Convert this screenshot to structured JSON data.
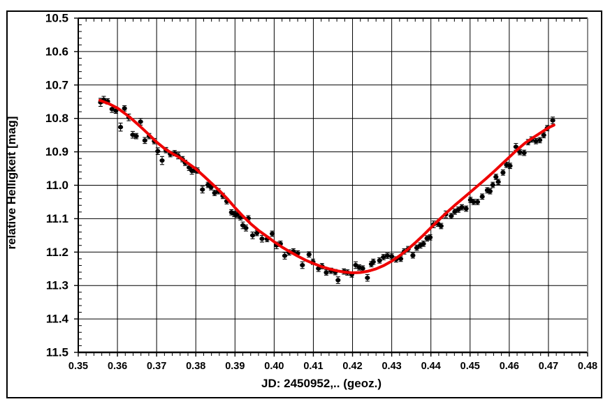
{
  "colors": {
    "background": "#ffffff",
    "frame": "#000000",
    "frame_right_axis": "#8c8c8c",
    "grid": "#000000",
    "data_points": "#000000",
    "fit_line": "#ee0000"
  },
  "chart_data": {
    "type": "scatter",
    "title": "",
    "xlabel": "JD: 2450952,..   (geoz.)",
    "ylabel": "relative Helligkeit [mag]",
    "xlim": [
      0.35,
      0.48
    ],
    "ylim": [
      10.5,
      11.5
    ],
    "y_axis_inverted_magnitude_scale": true,
    "grid": true,
    "x_major_step": 0.01,
    "x_minor_step": 0.002,
    "y_major_step": 0.1,
    "y_minor_step": 0.02,
    "x_tick_labels": [
      "0.35",
      "0.36",
      "0.37",
      "0.38",
      "0.39",
      "0.40",
      "0.41",
      "0.42",
      "0.43",
      "0.44",
      "0.45",
      "0.46",
      "0.47",
      "0.48"
    ],
    "y_tick_labels": [
      "10.5",
      "10.6",
      "10.7",
      "10.8",
      "10.9",
      "11.0",
      "11.1",
      "11.2",
      "11.3",
      "11.4",
      "11.5"
    ],
    "series": [
      {
        "name": "photometric measurements with error bars",
        "style": "scatter-errorbar",
        "color": "#000000",
        "points_format": [
          "jd_fraction",
          "magnitude",
          "error_mag"
        ],
        "points": [
          [
            0.3557,
            10.752,
            0.012
          ],
          [
            0.3565,
            10.744,
            0.01
          ],
          [
            0.3575,
            10.749,
            0.008
          ],
          [
            0.3586,
            10.772,
            0.01
          ],
          [
            0.3596,
            10.777,
            0.008
          ],
          [
            0.3608,
            10.826,
            0.012
          ],
          [
            0.3618,
            10.77,
            0.008
          ],
          [
            0.3629,
            10.797,
            0.01
          ],
          [
            0.3639,
            10.849,
            0.01
          ],
          [
            0.3648,
            10.853,
            0.008
          ],
          [
            0.3659,
            10.81,
            0.01
          ],
          [
            0.367,
            10.866,
            0.009
          ],
          [
            0.3681,
            10.853,
            0.008
          ],
          [
            0.3694,
            10.868,
            0.008
          ],
          [
            0.3703,
            10.898,
            0.01
          ],
          [
            0.3714,
            10.926,
            0.012
          ],
          [
            0.3724,
            10.895,
            0.008
          ],
          [
            0.3735,
            10.907,
            0.008
          ],
          [
            0.3746,
            10.904,
            0.008
          ],
          [
            0.3755,
            10.912,
            0.009
          ],
          [
            0.3766,
            10.922,
            0.008
          ],
          [
            0.3773,
            10.933,
            0.008
          ],
          [
            0.3783,
            10.947,
            0.009
          ],
          [
            0.379,
            10.957,
            0.01
          ],
          [
            0.3797,
            10.954,
            0.008
          ],
          [
            0.3804,
            10.956,
            0.008
          ],
          [
            0.3817,
            11.013,
            0.01
          ],
          [
            0.3831,
            10.999,
            0.008
          ],
          [
            0.3839,
            11.006,
            0.008
          ],
          [
            0.3848,
            11.023,
            0.008
          ],
          [
            0.3858,
            11.018,
            0.008
          ],
          [
            0.3869,
            11.032,
            0.008
          ],
          [
            0.3879,
            11.048,
            0.008
          ],
          [
            0.3891,
            11.081,
            0.008
          ],
          [
            0.3898,
            11.086,
            0.008
          ],
          [
            0.3905,
            11.088,
            0.008
          ],
          [
            0.3914,
            11.096,
            0.008
          ],
          [
            0.392,
            11.12,
            0.01
          ],
          [
            0.3928,
            11.128,
            0.009
          ],
          [
            0.3934,
            11.099,
            0.008
          ],
          [
            0.3945,
            11.15,
            0.01
          ],
          [
            0.3956,
            11.143,
            0.008
          ],
          [
            0.3969,
            11.16,
            0.01
          ],
          [
            0.3982,
            11.161,
            0.008
          ],
          [
            0.3995,
            11.145,
            0.008
          ],
          [
            0.4006,
            11.18,
            0.01
          ],
          [
            0.4016,
            11.175,
            0.008
          ],
          [
            0.4027,
            11.211,
            0.01
          ],
          [
            0.4038,
            11.201,
            0.008
          ],
          [
            0.4049,
            11.198,
            0.008
          ],
          [
            0.406,
            11.204,
            0.008
          ],
          [
            0.4072,
            11.239,
            0.01
          ],
          [
            0.4089,
            11.207,
            0.008
          ],
          [
            0.4099,
            11.229,
            0.008
          ],
          [
            0.4113,
            11.249,
            0.009
          ],
          [
            0.4122,
            11.242,
            0.008
          ],
          [
            0.4133,
            11.261,
            0.008
          ],
          [
            0.4145,
            11.256,
            0.008
          ],
          [
            0.4156,
            11.26,
            0.008
          ],
          [
            0.4163,
            11.284,
            0.01
          ],
          [
            0.4178,
            11.258,
            0.008
          ],
          [
            0.4187,
            11.261,
            0.008
          ],
          [
            0.4198,
            11.267,
            0.008
          ],
          [
            0.4208,
            11.239,
            0.01
          ],
          [
            0.4217,
            11.246,
            0.008
          ],
          [
            0.4226,
            11.249,
            0.008
          ],
          [
            0.4238,
            11.277,
            0.01
          ],
          [
            0.4248,
            11.236,
            0.008
          ],
          [
            0.4253,
            11.229,
            0.008
          ],
          [
            0.4269,
            11.225,
            0.008
          ],
          [
            0.4279,
            11.215,
            0.008
          ],
          [
            0.4289,
            11.211,
            0.008
          ],
          [
            0.43,
            11.213,
            0.008
          ],
          [
            0.4311,
            11.222,
            0.008
          ],
          [
            0.4323,
            11.22,
            0.008
          ],
          [
            0.4332,
            11.198,
            0.008
          ],
          [
            0.4342,
            11.191,
            0.008
          ],
          [
            0.4354,
            11.21,
            0.008
          ],
          [
            0.4364,
            11.187,
            0.008
          ],
          [
            0.4373,
            11.18,
            0.008
          ],
          [
            0.4381,
            11.175,
            0.008
          ],
          [
            0.439,
            11.159,
            0.008
          ],
          [
            0.4398,
            11.156,
            0.008
          ],
          [
            0.4407,
            11.117,
            0.01
          ],
          [
            0.4418,
            11.115,
            0.008
          ],
          [
            0.4426,
            11.122,
            0.008
          ],
          [
            0.4438,
            11.087,
            0.01
          ],
          [
            0.4452,
            11.092,
            0.008
          ],
          [
            0.4461,
            11.079,
            0.008
          ],
          [
            0.447,
            11.073,
            0.008
          ],
          [
            0.4479,
            11.066,
            0.008
          ],
          [
            0.449,
            11.07,
            0.008
          ],
          [
            0.4501,
            11.044,
            0.008
          ],
          [
            0.4509,
            11.05,
            0.008
          ],
          [
            0.4519,
            11.05,
            0.008
          ],
          [
            0.4531,
            11.034,
            0.008
          ],
          [
            0.4544,
            11.015,
            0.008
          ],
          [
            0.4551,
            11.018,
            0.008
          ],
          [
            0.4558,
            10.999,
            0.008
          ],
          [
            0.4566,
            10.975,
            0.008
          ],
          [
            0.4572,
            10.99,
            0.008
          ],
          [
            0.4584,
            10.962,
            0.008
          ],
          [
            0.4593,
            10.939,
            0.008
          ],
          [
            0.4602,
            10.942,
            0.008
          ],
          [
            0.4617,
            10.885,
            0.01
          ],
          [
            0.4627,
            10.901,
            0.008
          ],
          [
            0.4638,
            10.903,
            0.008
          ],
          [
            0.4648,
            10.871,
            0.008
          ],
          [
            0.4657,
            10.863,
            0.008
          ],
          [
            0.4668,
            10.868,
            0.008
          ],
          [
            0.4678,
            10.865,
            0.008
          ],
          [
            0.4688,
            10.85,
            0.008
          ],
          [
            0.4697,
            10.829,
            0.008
          ],
          [
            0.4711,
            10.806,
            0.01
          ]
        ]
      },
      {
        "name": "fitted light curve",
        "style": "line",
        "color": "#ee0000",
        "points_format": [
          "jd_fraction",
          "magnitude"
        ],
        "points": [
          [
            0.3555,
            10.746
          ],
          [
            0.358,
            10.757
          ],
          [
            0.36,
            10.769
          ],
          [
            0.362,
            10.786
          ],
          [
            0.364,
            10.805
          ],
          [
            0.366,
            10.826
          ],
          [
            0.368,
            10.848
          ],
          [
            0.37,
            10.871
          ],
          [
            0.372,
            10.89
          ],
          [
            0.374,
            10.905
          ],
          [
            0.376,
            10.918
          ],
          [
            0.378,
            10.934
          ],
          [
            0.38,
            10.951
          ],
          [
            0.382,
            10.972
          ],
          [
            0.384,
            10.994
          ],
          [
            0.386,
            11.016
          ],
          [
            0.388,
            11.04
          ],
          [
            0.39,
            11.067
          ],
          [
            0.392,
            11.092
          ],
          [
            0.394,
            11.115
          ],
          [
            0.396,
            11.135
          ],
          [
            0.398,
            11.152
          ],
          [
            0.4,
            11.169
          ],
          [
            0.402,
            11.185
          ],
          [
            0.404,
            11.199
          ],
          [
            0.406,
            11.212
          ],
          [
            0.408,
            11.224
          ],
          [
            0.41,
            11.234
          ],
          [
            0.412,
            11.243
          ],
          [
            0.414,
            11.25
          ],
          [
            0.416,
            11.256
          ],
          [
            0.418,
            11.26
          ],
          [
            0.42,
            11.262
          ],
          [
            0.422,
            11.261
          ],
          [
            0.424,
            11.257
          ],
          [
            0.426,
            11.25
          ],
          [
            0.428,
            11.24
          ],
          [
            0.43,
            11.227
          ],
          [
            0.432,
            11.211
          ],
          [
            0.434,
            11.193
          ],
          [
            0.436,
            11.172
          ],
          [
            0.438,
            11.15
          ],
          [
            0.44,
            11.127
          ],
          [
            0.442,
            11.104
          ],
          [
            0.444,
            11.082
          ],
          [
            0.446,
            11.061
          ],
          [
            0.448,
            11.041
          ],
          [
            0.45,
            11.021
          ],
          [
            0.452,
            11.001
          ],
          [
            0.454,
            10.981
          ],
          [
            0.456,
            10.96
          ],
          [
            0.458,
            10.938
          ],
          [
            0.46,
            10.916
          ],
          [
            0.462,
            10.894
          ],
          [
            0.464,
            10.874
          ],
          [
            0.466,
            10.858
          ],
          [
            0.468,
            10.843
          ],
          [
            0.47,
            10.828
          ],
          [
            0.4714,
            10.82
          ]
        ]
      }
    ]
  }
}
